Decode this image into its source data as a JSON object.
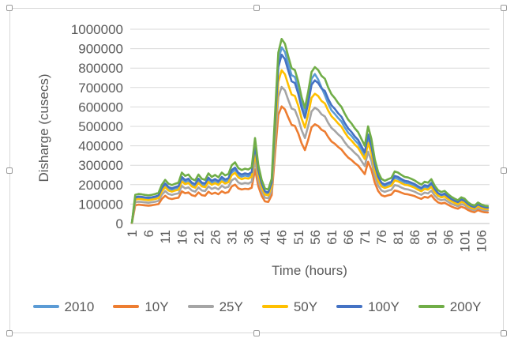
{
  "chart_data": {
    "type": "line",
    "title": "",
    "xlabel": "Time (hours)",
    "ylabel": "Disharge (cusecs)",
    "x_unit": "hours",
    "x_count": 108,
    "x_start": 1,
    "x_tick_values": [
      1,
      6,
      11,
      16,
      21,
      26,
      31,
      36,
      41,
      46,
      51,
      56,
      61,
      66,
      71,
      76,
      81,
      86,
      91,
      96,
      101,
      106
    ],
    "y_tick_labels": [
      "0",
      "100000",
      "200000",
      "300000",
      "400000",
      "500000",
      "600000",
      "700000",
      "800000",
      "900000",
      "1000000"
    ],
    "ylim": [
      0,
      1000000
    ],
    "y_tick_step": 100000,
    "grid": "horizontal",
    "legend_position": "bottom",
    "series": [
      {
        "name": "2010",
        "color": "#5B9BD5",
        "values": [
          4000,
          130000,
          133000,
          131000,
          129000,
          127000,
          130000,
          133000,
          138000,
          175000,
          197000,
          179000,
          173000,
          179000,
          184000,
          229000,
          214000,
          221000,
          201000,
          194000,
          221000,
          201000,
          197000,
          226000,
          210000,
          219000,
          208000,
          229000,
          217000,
          223000,
          263000,
          276000,
          249000,
          241000,
          247000,
          243000,
          254000,
          385000,
          263000,
          197000,
          158000,
          153000,
          201000,
          535000,
          840000,
          907000,
          883000,
          821000,
          764000,
          754000,
          697000,
          621000,
          568000,
          649000,
          745000,
          769000,
          741000,
          700000,
          660000,
          617000,
          582000,
          564000,
          543000,
          525000,
          494000,
          468000,
          451000,
          429000,
          411000,
          381000,
          350000,
          438000,
          381000,
          289000,
          232000,
          201000,
          193000,
          200000,
          206000,
          235000,
          229000,
          219000,
          210000,
          207000,
          201000,
          194000,
          184000,
          175000,
          188000,
          184000,
          200000,
          171000,
          151000,
          142000,
          147000,
          133000,
          121000,
          112000,
          105000,
          118000,
          112000,
          96000,
          86000,
          81000,
          95000,
          86000,
          81000,
          79000
        ]
      },
      {
        "name": "10Y",
        "color": "#ED7D31",
        "values": [
          3000,
          94000,
          97000,
          95000,
          93000,
          92000,
          94000,
          97000,
          100000,
          127000,
          143000,
          130000,
          126000,
          130000,
          133000,
          166000,
          156000,
          160000,
          146000,
          141000,
          160000,
          146000,
          143000,
          164000,
          152000,
          159000,
          151000,
          166000,
          157000,
          162000,
          191000,
          200000,
          181000,
          175000,
          179000,
          177000,
          184000,
          279000,
          191000,
          143000,
          114000,
          111000,
          146000,
          356000,
          559000,
          603000,
          587000,
          546000,
          508000,
          502000,
          464000,
          413000,
          378000,
          432000,
          495000,
          511000,
          502000,
          483000,
          473000,
          445000,
          422000,
          410000,
          394000,
          381000,
          359000,
          340000,
          327000,
          311000,
          298000,
          276000,
          254000,
          318000,
          276000,
          210000,
          168000,
          146000,
          140000,
          145000,
          149000,
          170000,
          166000,
          159000,
          152000,
          150000,
          146000,
          141000,
          133000,
          127000,
          137000,
          133000,
          145000,
          124000,
          109000,
          103000,
          107000,
          97000,
          88000,
          81000,
          76000,
          86000,
          81000,
          70000,
          62000,
          58000,
          69000,
          62000,
          58000,
          57000
        ]
      },
      {
        "name": "25Y",
        "color": "#A5A5A5",
        "values": [
          4000,
          110000,
          112000,
          111000,
          109000,
          107000,
          110000,
          112000,
          117000,
          148000,
          167000,
          152000,
          147000,
          152000,
          155000,
          194000,
          181000,
          186000,
          170000,
          164000,
          186000,
          170000,
          167000,
          191000,
          178000,
          185000,
          176000,
          194000,
          184000,
          189000,
          222000,
          233000,
          211000,
          204000,
          209000,
          206000,
          215000,
          326000,
          222000,
          167000,
          133000,
          130000,
          170000,
          414000,
          651000,
          703000,
          685000,
          636000,
          592000,
          585000,
          540000,
          481000,
          440000,
          503000,
          577000,
          596000,
          585000,
          562000,
          551000,
          518000,
          492000,
          477000,
          459000,
          444000,
          418000,
          396000,
          381000,
          363000,
          348000,
          322000,
          296000,
          370000,
          322000,
          244000,
          196000,
          170000,
          163000,
          169000,
          174000,
          198000,
          194000,
          185000,
          178000,
          175000,
          170000,
          164000,
          155000,
          148000,
          159000,
          155000,
          169000,
          144000,
          127000,
          120000,
          124000,
          112000,
          102000,
          95000,
          89000,
          100000,
          95000,
          81000,
          73000,
          68000,
          80000,
          73000,
          68000,
          67000
        ]
      },
      {
        "name": "50Y",
        "color": "#FFC000",
        "values": [
          4000,
          123000,
          126000,
          125000,
          122000,
          120000,
          123000,
          126000,
          131000,
          166000,
          187000,
          170000,
          164000,
          170000,
          174000,
          217000,
          203000,
          209000,
          191000,
          184000,
          209000,
          191000,
          187000,
          214000,
          199000,
          208000,
          198000,
          217000,
          206000,
          212000,
          249000,
          261000,
          237000,
          228000,
          234000,
          231000,
          241000,
          365000,
          249000,
          187000,
          149000,
          145000,
          191000,
          465000,
          730000,
          789000,
          768000,
          714000,
          664000,
          656000,
          606000,
          540000,
          494000,
          564000,
          647000,
          668000,
          656000,
          631000,
          618000,
          581000,
          552000,
          535000,
          515000,
          498000,
          469000,
          444000,
          427000,
          407000,
          390000,
          361000,
          332000,
          415000,
          361000,
          274000,
          220000,
          191000,
          183000,
          189000,
          195000,
          222000,
          217000,
          208000,
          199000,
          197000,
          191000,
          184000,
          174000,
          166000,
          178000,
          174000,
          189000,
          162000,
          143000,
          134000,
          139000,
          126000,
          115000,
          106000,
          100000,
          112000,
          106000,
          91000,
          81000,
          76000,
          90000,
          81000,
          76000,
          75000
        ]
      },
      {
        "name": "100Y",
        "color": "#4472C4",
        "values": [
          5000,
          135000,
          139000,
          137000,
          134000,
          133000,
          135000,
          139000,
          145000,
          183000,
          206000,
          188000,
          181000,
          188000,
          192000,
          240000,
          224000,
          231000,
          210000,
          203000,
          231000,
          210000,
          206000,
          236000,
          220000,
          229000,
          218000,
          240000,
          227000,
          233000,
          275000,
          288000,
          261000,
          252000,
          258000,
          254000,
          265000,
          403000,
          275000,
          206000,
          165000,
          160000,
          210000,
          512000,
          805000,
          869000,
          846000,
          787000,
          732000,
          723000,
          668000,
          595000,
          544000,
          622000,
          714000,
          737000,
          723000,
          695000,
          682000,
          641000,
          608000,
          590000,
          567000,
          549000,
          517000,
          490000,
          471000,
          448000,
          430000,
          398000,
          366000,
          458000,
          398000,
          302000,
          242000,
          210000,
          201000,
          209000,
          215000,
          245000,
          240000,
          229000,
          220000,
          217000,
          210000,
          203000,
          192000,
          183000,
          197000,
          192000,
          209000,
          178000,
          157000,
          148000,
          154000,
          139000,
          126000,
          117000,
          110000,
          124000,
          117000,
          101000,
          90000,
          84000,
          99000,
          90000,
          84000,
          82000
        ]
      },
      {
        "name": "200Y",
        "color": "#70AD47",
        "values": [
          5000,
          148000,
          152000,
          150000,
          147000,
          145000,
          148000,
          152000,
          158000,
          200000,
          225000,
          205000,
          198000,
          205000,
          210000,
          262000,
          245000,
          252000,
          230000,
          222000,
          252000,
          230000,
          225000,
          258000,
          240000,
          250000,
          238000,
          262000,
          248000,
          255000,
          300000,
          315000,
          285000,
          275000,
          282000,
          278000,
          290000,
          440000,
          300000,
          225000,
          180000,
          175000,
          230000,
          560000,
          880000,
          950000,
          925000,
          860000,
          800000,
          790000,
          730000,
          650000,
          595000,
          680000,
          780000,
          805000,
          790000,
          760000,
          745000,
          700000,
          665000,
          645000,
          620000,
          600000,
          565000,
          535000,
          515000,
          490000,
          470000,
          435000,
          400000,
          500000,
          435000,
          330000,
          265000,
          230000,
          220000,
          228000,
          235000,
          268000,
          262000,
          250000,
          240000,
          237000,
          230000,
          222000,
          210000,
          200000,
          215000,
          210000,
          228000,
          195000,
          172000,
          162000,
          168000,
          152000,
          138000,
          128000,
          120000,
          135000,
          128000,
          110000,
          98000,
          92000,
          108000,
          98000,
          92000,
          90000
        ]
      }
    ],
    "colors": {
      "axis_text": "#595959",
      "gridline": "#D9D9D9",
      "axis_line": "#BFBFBF",
      "frame_border": "#D7D7D7"
    }
  }
}
